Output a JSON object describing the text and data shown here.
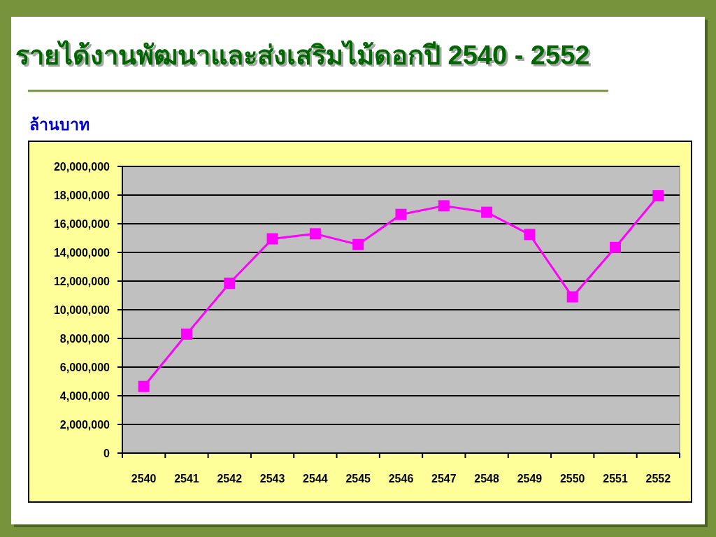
{
  "chart_data": {
    "type": "line",
    "title": "รายได้งานพัฒนาและส่งเสริมไม้ดอกปี 2540 - 2552",
    "ylabel": "ล้านบาท",
    "categories": [
      "2540",
      "2541",
      "2542",
      "2543",
      "2544",
      "2545",
      "2546",
      "2547",
      "2548",
      "2549",
      "2550",
      "2551",
      "2552"
    ],
    "series": [
      {
        "color": "#ff00ff",
        "values": [
          4650000,
          8300000,
          11850000,
          14950000,
          15300000,
          14550000,
          16650000,
          17250000,
          16800000,
          15250000,
          10900000,
          14350000,
          17950000
        ]
      }
    ],
    "ylim": [
      0,
      20000000
    ],
    "yticks": [
      0,
      {
        "value": 2000000,
        "label": "2,000,000"
      },
      {
        "value": 4000000,
        "label": "4,000,000"
      },
      {
        "value": 6000000,
        "label": "6,000,000"
      },
      {
        "value": 8000000,
        "label": "8,000,000"
      },
      {
        "value": 10000000,
        "label": "10,000,000"
      },
      {
        "value": 12000000,
        "label": "12,000,000"
      },
      {
        "value": 14000000,
        "label": "14,000,000"
      },
      {
        "value": 16000000,
        "label": "16,000,000"
      },
      {
        "value": 18000000,
        "label": "18,000,000"
      },
      {
        "value": 20000000,
        "label": "20,000,000"
      }
    ],
    "grid": "y",
    "marker": "square",
    "line_style": "solid"
  }
}
